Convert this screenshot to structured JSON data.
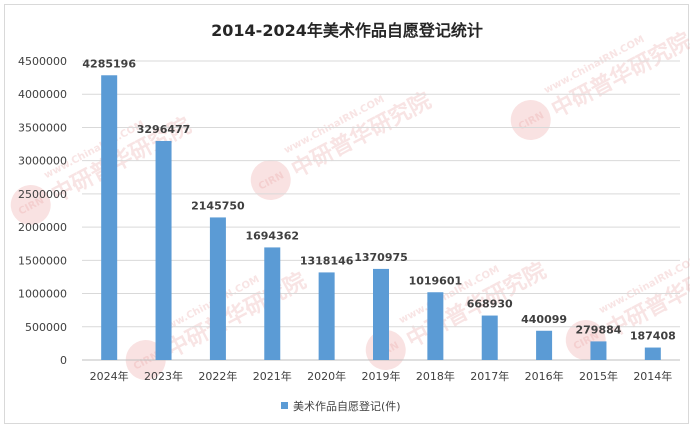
{
  "chart_data": {
    "type": "bar",
    "title": "2014-2024年美术作品自愿登记统计",
    "categories": [
      "2024年",
      "2023年",
      "2022年",
      "2021年",
      "2020年",
      "2019年",
      "2018年",
      "2017年",
      "2016年",
      "2015年",
      "2014年"
    ],
    "series": [
      {
        "name": "美术作品自愿登记(件)",
        "values": [
          4285196,
          3296477,
          2145750,
          1694362,
          1318146,
          1370975,
          1019601,
          668930,
          440099,
          279884,
          187408
        ],
        "data_labels": [
          "4285196",
          "3296477",
          "2145750",
          "1694362",
          "1318146",
          "1370975",
          "1019601",
          "668930",
          "440099",
          "279884",
          "187408"
        ],
        "color": "#5b9bd5"
      }
    ],
    "ylim": [
      0,
      4500000
    ],
    "yticks": [
      "0",
      "500000",
      "1000000",
      "1500000",
      "2000000",
      "2500000",
      "3000000",
      "3500000",
      "4000000",
      "4500000"
    ],
    "xlabel": "",
    "ylabel": "",
    "grid": true,
    "legend_position": "bottom"
  },
  "watermark": {
    "text": "中研普华研究院",
    "url_text": "www.ChinaIRN.COM",
    "logo_text": "CIRN",
    "color": "#e06060"
  }
}
